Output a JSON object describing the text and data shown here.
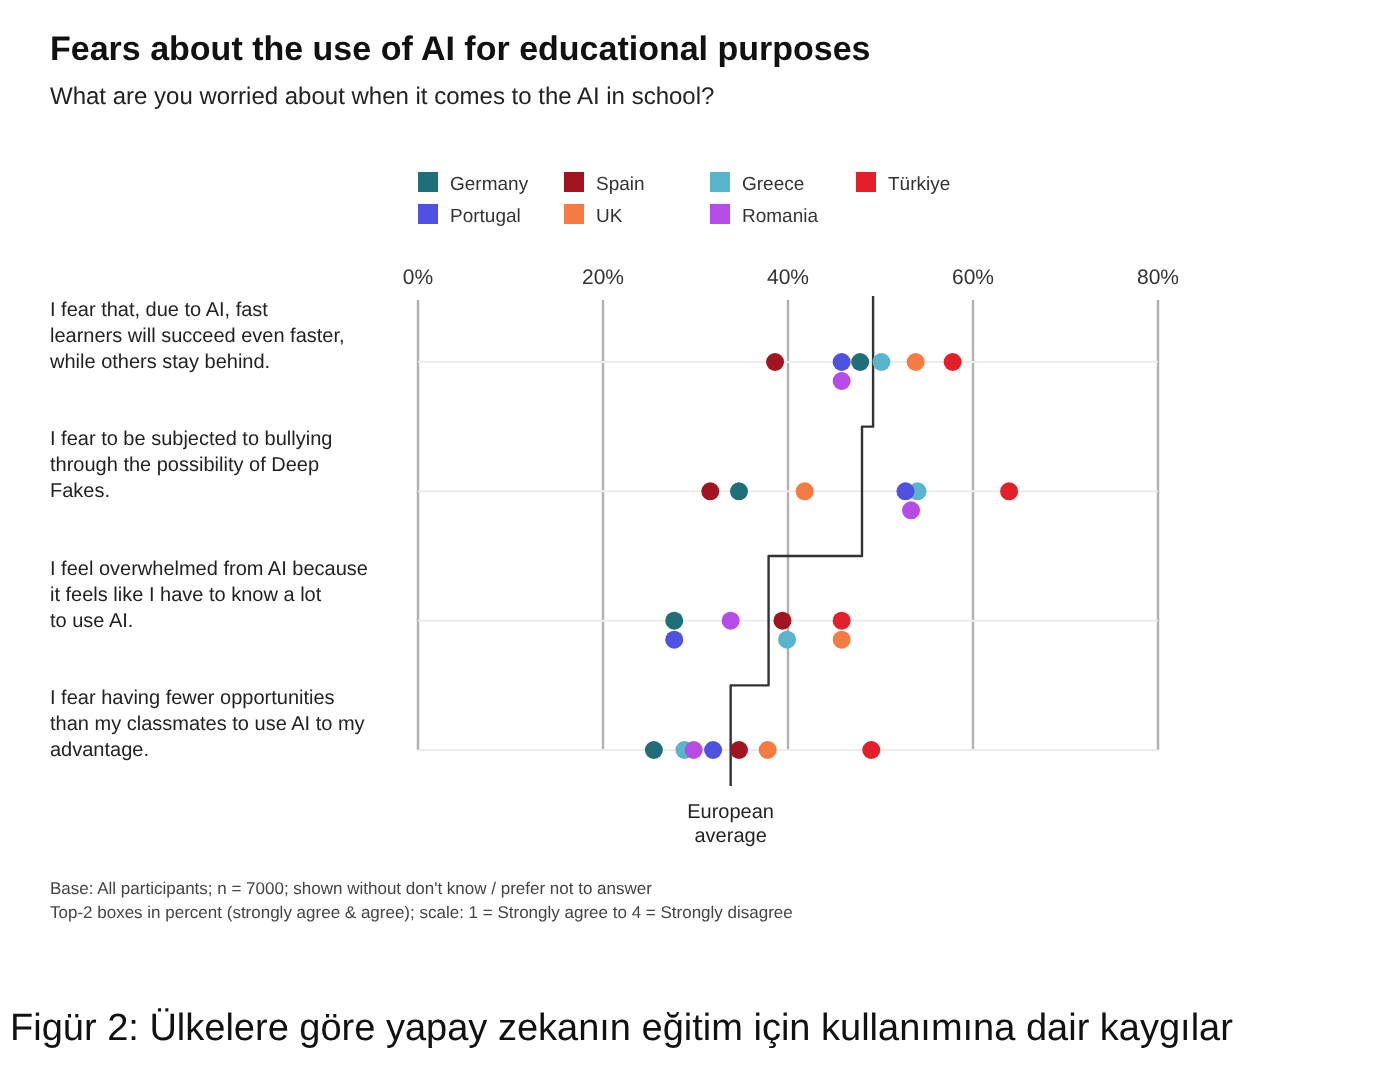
{
  "chart_data": {
    "type": "scatter",
    "orientation": "horizontal",
    "title": "Fears about the use of AI for educational purposes",
    "subtitle": "What are you worried about when it comes to the AI in school?",
    "categories": [
      "I fear that, due to AI, fast learners will succeed even faster, while others stay behind.",
      "I fear to be subjected to bullying through the possibility of Deep Fakes.",
      "I feel overwhelmed from AI because it feels like I have to know a lot to use AI.",
      "I fear having fewer opportunities than my classmates to use AI to my advantage."
    ],
    "xlim": [
      0,
      80
    ],
    "xticks": [
      {
        "value": 0,
        "label": "0%"
      },
      {
        "value": 20,
        "label": "20%"
      },
      {
        "value": 40,
        "label": "40%"
      },
      {
        "value": 60,
        "label": "60%"
      },
      {
        "value": 80,
        "label": "80%"
      }
    ],
    "grid": true,
    "legend": "top",
    "marker": "circle",
    "series": [
      {
        "name": "Germany",
        "color": "#1f6e78",
        "values": [
          47.8,
          34.7,
          27.7,
          25.5
        ]
      },
      {
        "name": "Spain",
        "color": "#a01520",
        "values": [
          38.6,
          31.6,
          39.4,
          34.7
        ]
      },
      {
        "name": "Greece",
        "color": "#5ab4cc",
        "values": [
          50.1,
          54.0,
          39.9,
          28.8
        ]
      },
      {
        "name": "Türkiye",
        "color": "#e3202a",
        "values": [
          57.8,
          63.9,
          45.8,
          49.0
        ]
      },
      {
        "name": "Portugal",
        "color": "#4f52e0",
        "values": [
          45.8,
          52.7,
          27.7,
          31.9
        ]
      },
      {
        "name": "UK",
        "color": "#f47c42",
        "values": [
          53.8,
          41.8,
          45.8,
          37.8
        ]
      },
      {
        "name": "Romania",
        "color": "#b64be8",
        "values": [
          45.8,
          53.3,
          33.8,
          29.8
        ]
      },
      {
        "name": "European average",
        "type": "step",
        "marker": "none",
        "color": "#333333",
        "values": [
          49.2,
          48.0,
          37.9,
          33.8
        ]
      }
    ],
    "annotations": [
      "Base: All participants; n = 7000; shown without don't know / prefer not to answer",
      "Top-2 boxes in percent (strongly agree & agree); scale: 1 = Strongly agree to 4 = Strongly disagree",
      "Figür 2: Ülkelere göre  yapay zekanın eğitim için kullanımına dair kaygılar"
    ]
  }
}
